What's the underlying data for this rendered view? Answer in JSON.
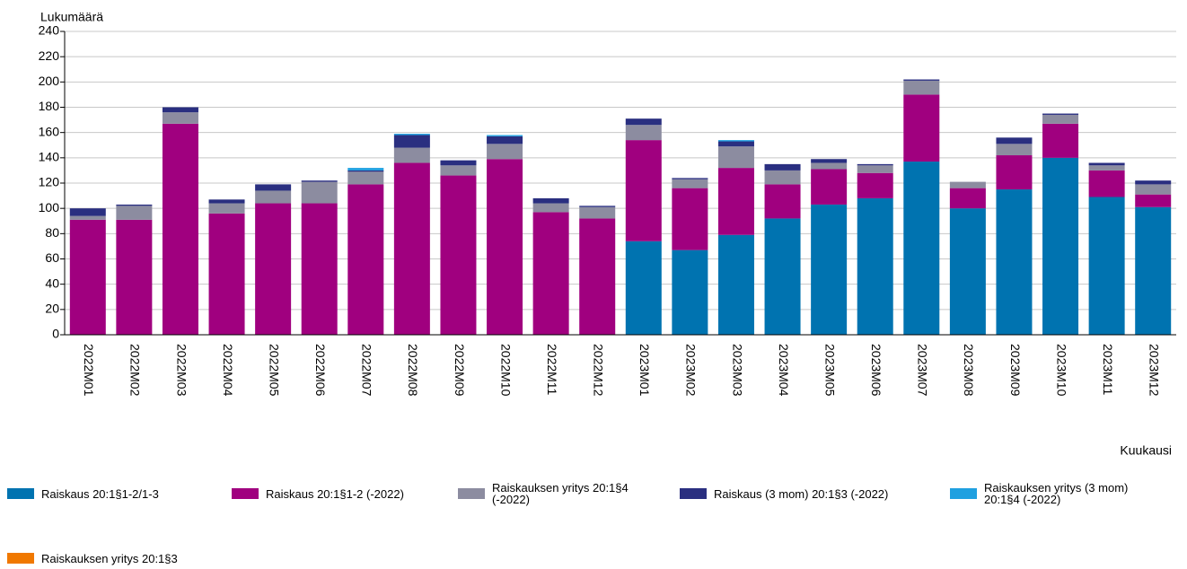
{
  "chart_data": {
    "type": "stacked_bar",
    "y_label": "Lukumäärä",
    "x_label": "Kuukausi",
    "categories": [
      "2022M01",
      "2022M02",
      "2022M03",
      "2022M04",
      "2022M05",
      "2022M06",
      "2022M07",
      "2022M08",
      "2022M09",
      "2022M10",
      "2022M11",
      "2022M12",
      "2023M01",
      "2023M02",
      "2023M03",
      "2023M04",
      "2023M05",
      "2023M06",
      "2023M07",
      "2023M08",
      "2023M09",
      "2023M10",
      "2023M11",
      "2023M12"
    ],
    "ylim": [
      0,
      240
    ],
    "yticks": [
      0,
      20,
      40,
      60,
      80,
      100,
      120,
      140,
      160,
      180,
      200,
      220,
      240
    ],
    "grid": true,
    "series": [
      {
        "name": "Raiskaus 20:1§1-2/1-3",
        "color": "#0073b0",
        "values": [
          0,
          0,
          0,
          0,
          0,
          0,
          0,
          0,
          0,
          0,
          0,
          0,
          74,
          67,
          79,
          92,
          103,
          108,
          137,
          100,
          115,
          140,
          109,
          101
        ]
      },
      {
        "name": "Raiskaus 20:1§1-2 (-2022)",
        "color": "#a0007f",
        "values": [
          91,
          91,
          167,
          96,
          104,
          104,
          119,
          136,
          126,
          139,
          97,
          92,
          80,
          49,
          53,
          27,
          28,
          20,
          53,
          16,
          27,
          27,
          21,
          10
        ]
      },
      {
        "name": "Raiskauksen yritys 20:1§4 (-2022)",
        "color": "#8c8ca0",
        "values": [
          3,
          11,
          9,
          8,
          10,
          17,
          10,
          12,
          8,
          12,
          7,
          9,
          12,
          7,
          17,
          11,
          5,
          6,
          11,
          5,
          9,
          7,
          4,
          8
        ]
      },
      {
        "name": "Raiskaus (3 mom) 20:1§3 (-2022)",
        "color": "#2a2f80",
        "values": [
          6,
          1,
          4,
          3,
          5,
          1,
          1,
          10,
          4,
          6,
          4,
          1,
          5,
          1,
          4,
          5,
          3,
          1,
          1,
          0,
          5,
          1,
          2,
          3
        ]
      },
      {
        "name": "Raiskauksen yritys (3 mom) 20:1§4 (-2022)",
        "color": "#1fa0e0",
        "values": [
          0,
          0,
          0,
          0,
          0,
          0,
          2,
          1,
          0,
          1,
          0,
          0,
          0,
          0,
          1,
          0,
          0,
          0,
          0,
          0,
          0,
          0,
          0,
          0
        ]
      },
      {
        "name": "Raiskauksen yritys 20:1§3",
        "color": "#f07800",
        "values": [
          0,
          0,
          0,
          0,
          0,
          0,
          0,
          0,
          0,
          0,
          0,
          0,
          0,
          0,
          0,
          0,
          0,
          0,
          0,
          0,
          0,
          0,
          0,
          0
        ]
      }
    ]
  }
}
